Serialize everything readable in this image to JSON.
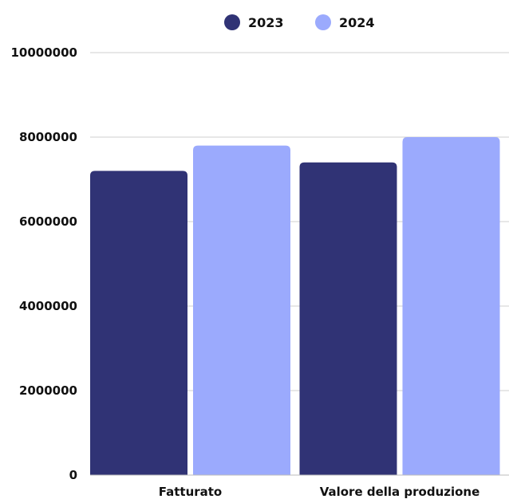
{
  "chart_data": {
    "type": "bar",
    "categories": [
      "Fatturato",
      "Valore della produzione"
    ],
    "series": [
      {
        "name": "2023",
        "color": "#303375",
        "values": [
          7200000,
          7400000
        ]
      },
      {
        "name": "2024",
        "color": "#9baafd",
        "values": [
          7800000,
          8000000
        ]
      }
    ],
    "ylim": [
      0,
      10000000
    ],
    "yticks": [
      0,
      2000000,
      4000000,
      6000000,
      8000000,
      10000000
    ],
    "ytick_labels": [
      "0",
      "2000000",
      "4000000",
      "6000000",
      "8000000",
      "10000000"
    ],
    "grid": true,
    "legend_position": "top-center",
    "title": "",
    "xlabel": "",
    "ylabel": ""
  }
}
